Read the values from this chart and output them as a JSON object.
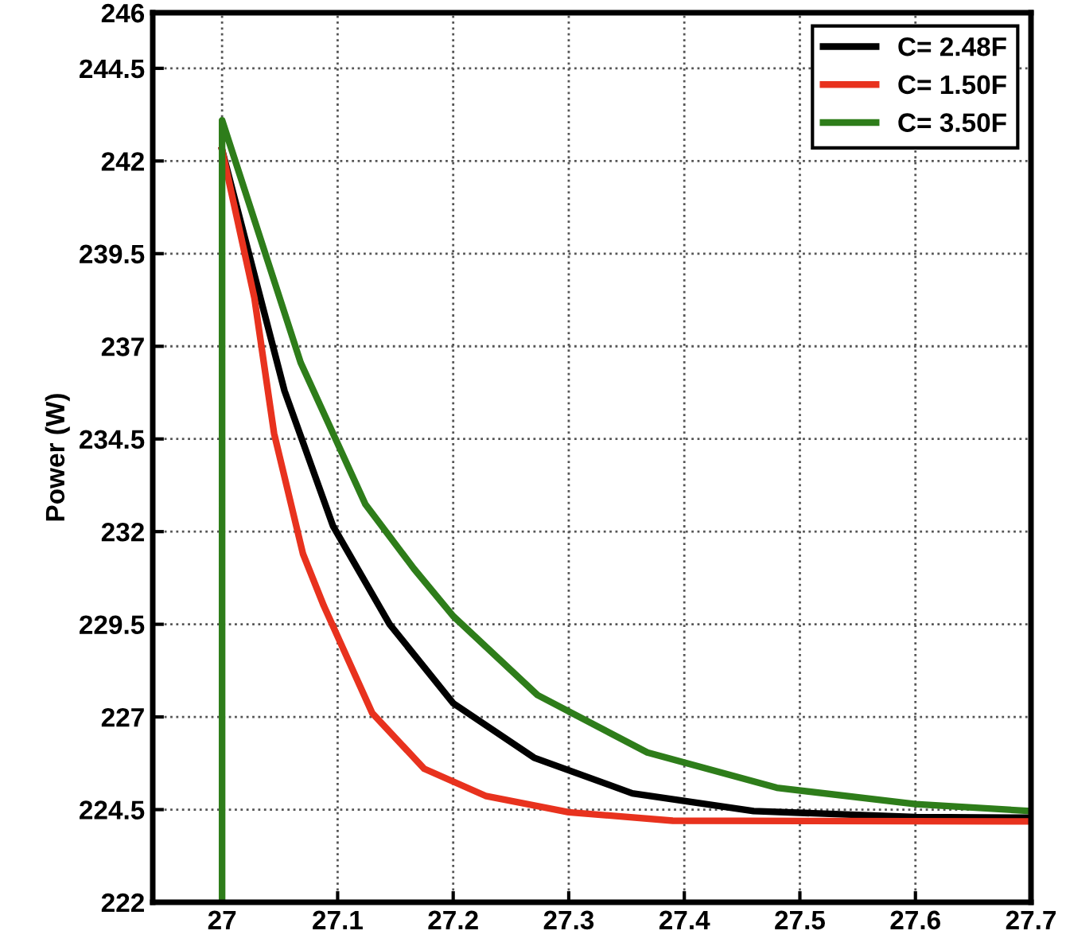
{
  "chart_data": {
    "type": "line",
    "ylabel": "Power (W)",
    "xlim": [
      26.94,
      27.7
    ],
    "xticks": [
      27,
      {
        "value": 27.1,
        "label": "27.1"
      },
      {
        "value": 27.2,
        "label": "27.2"
      },
      {
        "value": 27.3,
        "label": "27.3"
      },
      {
        "value": 27.4,
        "label": "27.4"
      },
      {
        "value": 27.5,
        "label": "27.5"
      },
      {
        "value": 27.6,
        "label": "27.6"
      },
      {
        "value": 27.7,
        "label": "27.7"
      }
    ],
    "ylim": [
      222,
      246
    ],
    "yticks": [
      222,
      224.5,
      227,
      229.5,
      232,
      234.5,
      237,
      239.5,
      242,
      244.5,
      246
    ],
    "grid": true,
    "legend": "top right",
    "series": [
      {
        "name": "C= 2.48F",
        "color": "#000000",
        "x": [
          27.0,
          27.054,
          27.096,
          27.145,
          27.2,
          27.27,
          27.355,
          27.46,
          27.6,
          27.7
        ],
        "values": [
          242.3,
          235.8,
          232.15,
          229.5,
          227.37,
          225.9,
          224.94,
          224.46,
          224.3,
          224.28
        ]
      },
      {
        "name": "C= 1.50F",
        "color": "#e8321e",
        "x": [
          27.0,
          27.028,
          27.045,
          27.07,
          27.088,
          27.13,
          27.175,
          27.228,
          27.3,
          27.39,
          27.7
        ],
        "values": [
          242.3,
          238.3,
          234.65,
          231.4,
          230.0,
          227.1,
          225.6,
          224.87,
          224.43,
          224.2,
          224.18
        ]
      },
      {
        "name": "C= 3.50F",
        "color": "#2e7d1a",
        "x": [
          27.0,
          27.0,
          27.068,
          27.124,
          27.166,
          27.2,
          27.273,
          27.368,
          27.48,
          27.6,
          27.7
        ],
        "values": [
          222,
          243.1,
          236.56,
          232.74,
          231.0,
          229.72,
          227.59,
          226.04,
          225.09,
          224.65,
          224.46
        ]
      }
    ]
  }
}
